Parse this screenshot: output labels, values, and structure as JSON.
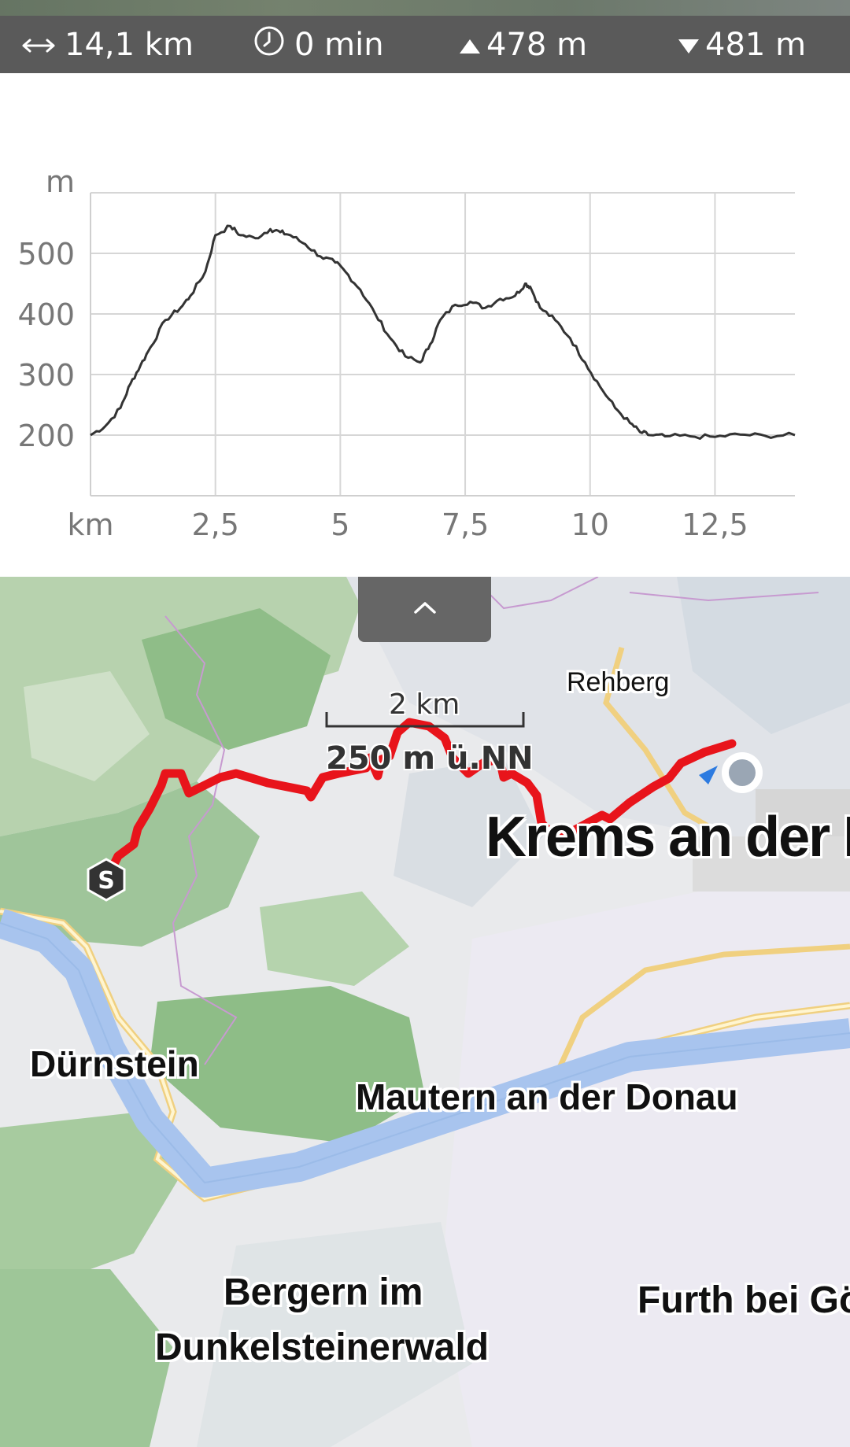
{
  "stats": {
    "distance": "14,1 km",
    "duration": "0 min",
    "ascent": "478 m",
    "descent": "481 m"
  },
  "icons": {
    "distance": "horizontal-arrows-icon",
    "duration": "clock-icon",
    "ascent": "triangle-up-icon",
    "descent": "triangle-down-icon",
    "collapse": "chevron-up-icon",
    "start_marker": "start-s-marker-icon",
    "end_marker": "current-location-dot-icon"
  },
  "chart_data": {
    "type": "line",
    "title": "",
    "ylabel": "m",
    "xlabel": "km",
    "xlim": [
      0,
      14.1
    ],
    "ylim": [
      100,
      600
    ],
    "y_ticks": [
      "200",
      "300",
      "400",
      "500"
    ],
    "x_ticks": [
      "2,5",
      "5",
      "7,5",
      "10",
      "12,5"
    ],
    "grid": true,
    "series": [
      {
        "x": [
          0,
          0.3,
          0.6,
          0.8,
          1.0,
          1.2,
          1.5,
          1.8,
          2.0,
          2.3,
          2.5,
          2.8,
          3.0,
          3.3,
          3.6,
          3.8,
          4.0,
          4.3,
          4.6,
          4.9,
          5.1,
          5.4,
          5.7,
          6.0,
          6.3,
          6.6,
          6.8,
          7.0,
          7.3,
          7.6,
          7.9,
          8.2,
          8.5,
          8.7,
          8.8,
          9.0,
          9.3,
          9.6,
          9.9,
          10.2,
          10.5,
          10.8,
          11.0,
          11.2,
          11.5,
          12.0,
          12.5,
          13.0,
          13.5,
          14.1
        ],
        "y": [
          200,
          215,
          245,
          285,
          315,
          345,
          390,
          410,
          430,
          470,
          530,
          545,
          530,
          525,
          540,
          535,
          530,
          515,
          495,
          485,
          470,
          440,
          400,
          360,
          330,
          320,
          350,
          390,
          415,
          420,
          410,
          425,
          430,
          450,
          445,
          410,
          390,
          360,
          320,
          280,
          245,
          220,
          205,
          200,
          198,
          198,
          197,
          201,
          199,
          200
        ]
      }
    ]
  },
  "map": {
    "places": {
      "rehberg": "Rehberg",
      "krems": "Krems an der D",
      "duernstein": "Dürnstein",
      "mautern": "Mautern an der Donau",
      "bergern_line1": "Bergern im",
      "bergern_line2": "Dunkelsteinerwald",
      "furth": "Furth bei Göt"
    },
    "scale": {
      "distance": "2 km",
      "elevation": "250 m ü.NN"
    },
    "start_marker_label": "S",
    "route_color": "#e8141b",
    "river_color": "#a8c4ee"
  }
}
